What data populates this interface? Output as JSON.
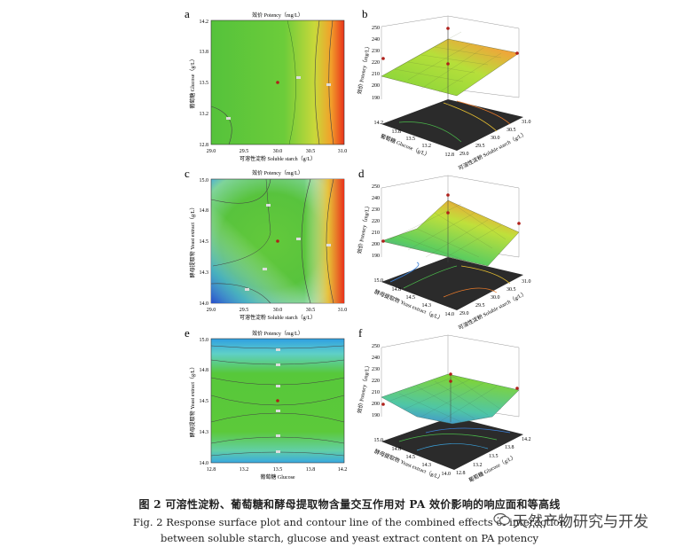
{
  "caption": {
    "zh": "图 2   可溶性淀粉、葡萄糖和酵母提取物含量交互作用对 PA 效价影响的响应面和等高线",
    "en_line1": "Fig. 2   Response surface plot and contour line of the combined effects of interaction",
    "en_line2": "between soluble starch, glucose and yeast extract content on PA potency"
  },
  "watermark": "天然产物研究与开发",
  "colors": {
    "low": "#2a5fd0",
    "mid": "#57c83a",
    "high": "#e8311a",
    "point": "#b0201a"
  },
  "chart_data": [
    {
      "panel": "a",
      "type": "contour",
      "title": "效价 Potency（mg/L）",
      "xlabel": "可溶性淀粉 Soluble starch（g/L）",
      "ylabel": "葡萄糖 Glucose（g/L）",
      "xticks": [
        "29.0",
        "29.5",
        "30.0",
        "30.5",
        "31.0"
      ],
      "yticks": [
        "12.8",
        "13.2",
        "13.5",
        "13.8",
        "14.2"
      ],
      "xlim": [
        29.0,
        31.0
      ],
      "ylim": [
        12.8,
        14.2
      ],
      "center": [
        30.0,
        13.5
      ]
    },
    {
      "panel": "b",
      "type": "surface",
      "zlabel": "效价 Potency（mg/L）",
      "zticks": [
        "190",
        "200",
        "210",
        "220",
        "230",
        "240",
        "250"
      ],
      "xlabel": "可溶性淀粉 Soluble starch（g/L）",
      "ylabel": "葡萄糖 Glucose（g/L）",
      "xticks": [
        "29.0",
        "29.5",
        "30.0",
        "30.5",
        "31.0"
      ],
      "yticks": [
        "12.8",
        "13.2",
        "13.5",
        "13.8",
        "14.2"
      ]
    },
    {
      "panel": "c",
      "type": "contour",
      "title": "效价 Potency（mg/L）",
      "xlabel": "可溶性淀粉 Soluble starch（g/L）",
      "ylabel": "酵母提取物 Yeast extract（g/L）",
      "xticks": [
        "29.0",
        "29.5",
        "30.0",
        "30.5",
        "31.0"
      ],
      "yticks": [
        "14.0",
        "14.3",
        "14.5",
        "14.8",
        "15.0"
      ],
      "xlim": [
        29.0,
        31.0
      ],
      "ylim": [
        14.0,
        15.0
      ],
      "center": [
        30.0,
        14.5
      ]
    },
    {
      "panel": "d",
      "type": "surface",
      "zlabel": "效价 Potency（mg/L）",
      "zticks": [
        "190",
        "200",
        "210",
        "220",
        "230",
        "240",
        "250"
      ],
      "xlabel": "可溶性淀粉 Soluble starch（g/L）",
      "ylabel": "酵母提取物 Yeast extract（g/L）",
      "xticks": [
        "29.0",
        "29.5",
        "30.0",
        "30.5",
        "31.0"
      ],
      "yticks": [
        "14.0",
        "14.3",
        "14.5",
        "14.8",
        "15.0"
      ]
    },
    {
      "panel": "e",
      "type": "contour",
      "title": "效价 Potency（mg/L）",
      "xlabel": "葡萄糖 Glucose",
      "ylabel": "酵母提取物 Yeast extract（g/L）",
      "xticks": [
        "12.8",
        "13.2",
        "13.5",
        "13.8",
        "14.2"
      ],
      "yticks": [
        "14.0",
        "14.3",
        "14.5",
        "14.8",
        "15.0"
      ],
      "xlim": [
        12.8,
        14.2
      ],
      "ylim": [
        14.0,
        15.0
      ],
      "center": [
        13.5,
        14.5
      ]
    },
    {
      "panel": "f",
      "type": "surface",
      "zlabel": "效价 Potency（mg/L）",
      "zticks": [
        "190",
        "200",
        "210",
        "220",
        "230",
        "240",
        "250"
      ],
      "xlabel": "葡萄糖 Glucose（g/L）",
      "ylabel": "酵母提取物 Yeast extract（g/L）",
      "xticks": [
        "12.8",
        "13.2",
        "13.5",
        "13.8",
        "14.2"
      ],
      "yticks": [
        "14.0",
        "14.3",
        "14.5",
        "14.8",
        "15.0"
      ]
    }
  ]
}
